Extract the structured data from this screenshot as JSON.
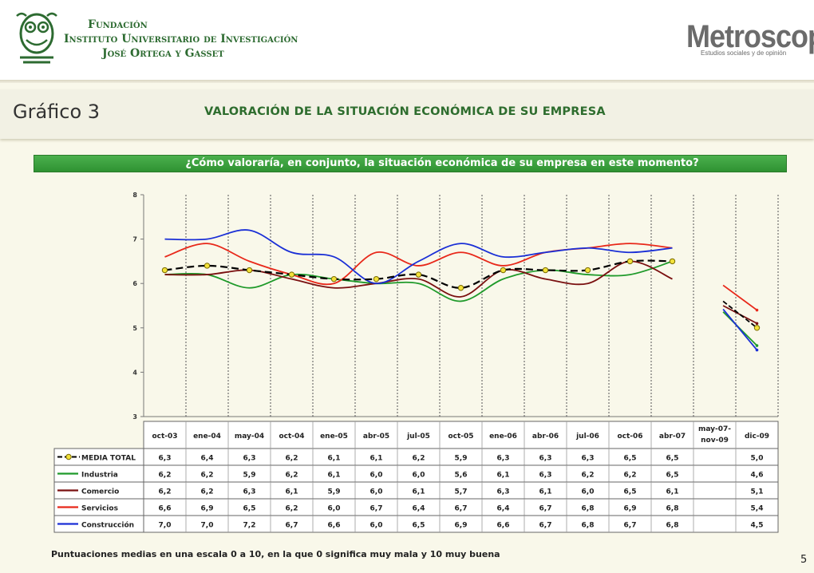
{
  "header": {
    "foundation_line1": "Fundación",
    "foundation_line2": "Instituto Universitario de Investigación",
    "foundation_line3": "José Ortega y Gasset",
    "brand_name": "Metroscopia",
    "brand_tagline": "Estudios sociales y de opinión"
  },
  "slide": {
    "label": "Gráfico 3",
    "title": "VALORACIÓN DE LA SITUACIÓN ECONÓMICA DE SU EMPRESA",
    "question": "¿Cómo valoraría, en conjunto,  la situación económica de su empresa en este momento?",
    "footnote": "Puntuaciones medias en una escala 0 a 10, en la que 0 significa muy mala y 10 muy buena",
    "page_number": "5"
  },
  "chart_data": {
    "type": "line",
    "categories": [
      "oct-03",
      "ene-04",
      "may-04",
      "oct-04",
      "ene-05",
      "abr-05",
      "jul-05",
      "oct-05",
      "ene-06",
      "abr-06",
      "jul-06",
      "oct-06",
      "abr-07",
      "may-07-nov-09",
      "dic-09"
    ],
    "category_label_lines": [
      [
        "oct-03"
      ],
      [
        "ene-04"
      ],
      [
        "may-04"
      ],
      [
        "oct-04"
      ],
      [
        "ene-05"
      ],
      [
        "abr-05"
      ],
      [
        "jul-05"
      ],
      [
        "oct-05"
      ],
      [
        "ene-06"
      ],
      [
        "abr-06"
      ],
      [
        "jul-06"
      ],
      [
        "oct-06"
      ],
      [
        "abr-07"
      ],
      [
        "may-07-",
        "nov-09"
      ],
      [
        "dic-09"
      ]
    ],
    "ylim": [
      3,
      8
    ],
    "yticks": [
      "3",
      "4",
      "5",
      "6",
      "7",
      "8"
    ],
    "legend_placement": "table-left",
    "series": [
      {
        "name": "MEDIA TOTAL",
        "color": "#000000",
        "dashed": true,
        "markers": true,
        "values": [
          6.3,
          6.4,
          6.3,
          6.2,
          6.1,
          6.1,
          6.2,
          5.9,
          6.3,
          6.3,
          6.3,
          6.5,
          6.5,
          null,
          5.0
        ],
        "labels": [
          "6,3",
          "6,4",
          "6,3",
          "6,2",
          "6,1",
          "6,1",
          "6,2",
          "5,9",
          "6,3",
          "6,3",
          "6,3",
          "6,5",
          "6,5",
          "",
          "5,0"
        ]
      },
      {
        "name": "Industria",
        "color": "#1f9a2a",
        "dashed": false,
        "markers": false,
        "values": [
          6.2,
          6.2,
          5.9,
          6.2,
          6.1,
          6.0,
          6.0,
          5.6,
          6.1,
          6.3,
          6.2,
          6.2,
          6.5,
          null,
          4.6
        ],
        "labels": [
          "6,2",
          "6,2",
          "5,9",
          "6,2",
          "6,1",
          "6,0",
          "6,0",
          "5,6",
          "6,1",
          "6,3",
          "6,2",
          "6,2",
          "6,5",
          "",
          "4,6"
        ]
      },
      {
        "name": "Comercio",
        "color": "#7a1010",
        "dashed": false,
        "markers": false,
        "values": [
          6.2,
          6.2,
          6.3,
          6.1,
          5.9,
          6.0,
          6.1,
          5.7,
          6.3,
          6.1,
          6.0,
          6.5,
          6.1,
          null,
          5.1
        ],
        "labels": [
          "6,2",
          "6,2",
          "6,3",
          "6,1",
          "5,9",
          "6,0",
          "6,1",
          "5,7",
          "6,3",
          "6,1",
          "6,0",
          "6,5",
          "6,1",
          "",
          "5,1"
        ]
      },
      {
        "name": "Servicios",
        "color": "#e8281a",
        "dashed": false,
        "markers": false,
        "values": [
          6.6,
          6.9,
          6.5,
          6.2,
          6.0,
          6.7,
          6.4,
          6.7,
          6.4,
          6.7,
          6.8,
          6.9,
          6.8,
          null,
          5.4
        ],
        "labels": [
          "6,6",
          "6,9",
          "6,5",
          "6,2",
          "6,0",
          "6,7",
          "6,4",
          "6,7",
          "6,4",
          "6,7",
          "6,8",
          "6,9",
          "6,8",
          "",
          "5,4"
        ]
      },
      {
        "name": "Construcción",
        "color": "#1a2fd6",
        "dashed": false,
        "markers": false,
        "values": [
          7.0,
          7.0,
          7.2,
          6.7,
          6.6,
          6.0,
          6.5,
          6.9,
          6.6,
          6.7,
          6.8,
          6.7,
          6.8,
          null,
          4.5
        ],
        "labels": [
          "7,0",
          "7,0",
          "7,2",
          "6,7",
          "6,6",
          "6,0",
          "6,5",
          "6,9",
          "6,6",
          "6,7",
          "6,8",
          "6,7",
          "6,8",
          "",
          "4,5"
        ]
      }
    ]
  }
}
